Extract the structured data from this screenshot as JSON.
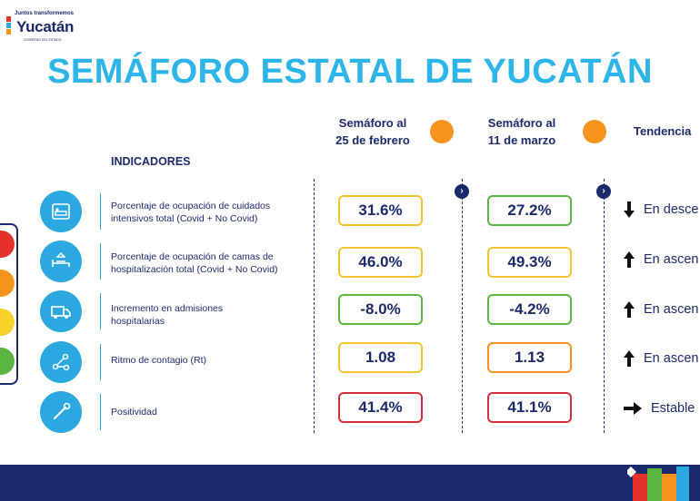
{
  "logo": {
    "top_line": "Juntos transformemos",
    "name": "Yucatán",
    "gov": "GOBIERNO DEL ESTADO"
  },
  "title": "SEMÁFORO ESTATAL DE YUCATÁN",
  "columns": {
    "col1": {
      "line1": "Semáforo al",
      "line2": "25 de febrero",
      "status_color": "#f6931d"
    },
    "col2": {
      "line1": "Semáforo al",
      "line2": "11 de marzo",
      "status_color": "#f6931d"
    },
    "trend": "Tendencia"
  },
  "indicators_header": "INDICADORES",
  "rows": [
    {
      "icon": "icu-bed-icon",
      "label_line1": "Porcentaje de ocupación de cuidados",
      "label_line2": "intensivos total (Covid + No Covid)",
      "v1": "31.6%",
      "v1_color": "#f2c530",
      "v2": "27.2%",
      "v2_color": "#5cb442",
      "trend_icon": "arrow-down-icon",
      "trend": "En desce"
    },
    {
      "icon": "hospital-bed-icon",
      "label_line1": "Porcentaje de ocupación de camas de",
      "label_line2": "hospitalización total (Covid + No Covid)",
      "v1": "46.0%",
      "v1_color": "#f2c530",
      "v2": "49.3%",
      "v2_color": "#f2c530",
      "trend_icon": "arrow-up-icon",
      "trend": "En ascen"
    },
    {
      "icon": "ambulance-icon",
      "label_line1": "Incremento en admisiones",
      "label_line2": "hospitalarias",
      "v1": "-8.0%",
      "v1_color": "#5cb442",
      "v2": "-4.2%",
      "v2_color": "#5cb442",
      "trend_icon": "arrow-up-icon",
      "trend": "En ascen"
    },
    {
      "icon": "contagion-icon",
      "label_line1": "Ritmo de contagio (Rt)",
      "label_line2": "",
      "v1": "1.08",
      "v1_color": "#f2c530",
      "v2": "1.13",
      "v2_color": "#f6931d",
      "trend_icon": "arrow-up-icon",
      "trend": "En ascen"
    },
    {
      "icon": "test-swab-icon",
      "label_line1": "Positividad",
      "label_line2": "",
      "v1": "41.4%",
      "v1_color": "#d32f3a",
      "v2": "41.1%",
      "v2_color": "#d32f3a",
      "trend_icon": "arrow-right-icon",
      "trend": "Estable"
    }
  ],
  "traffic_light": [
    "#e4312b",
    "#f6931d",
    "#f7d22a",
    "#5cb442"
  ]
}
